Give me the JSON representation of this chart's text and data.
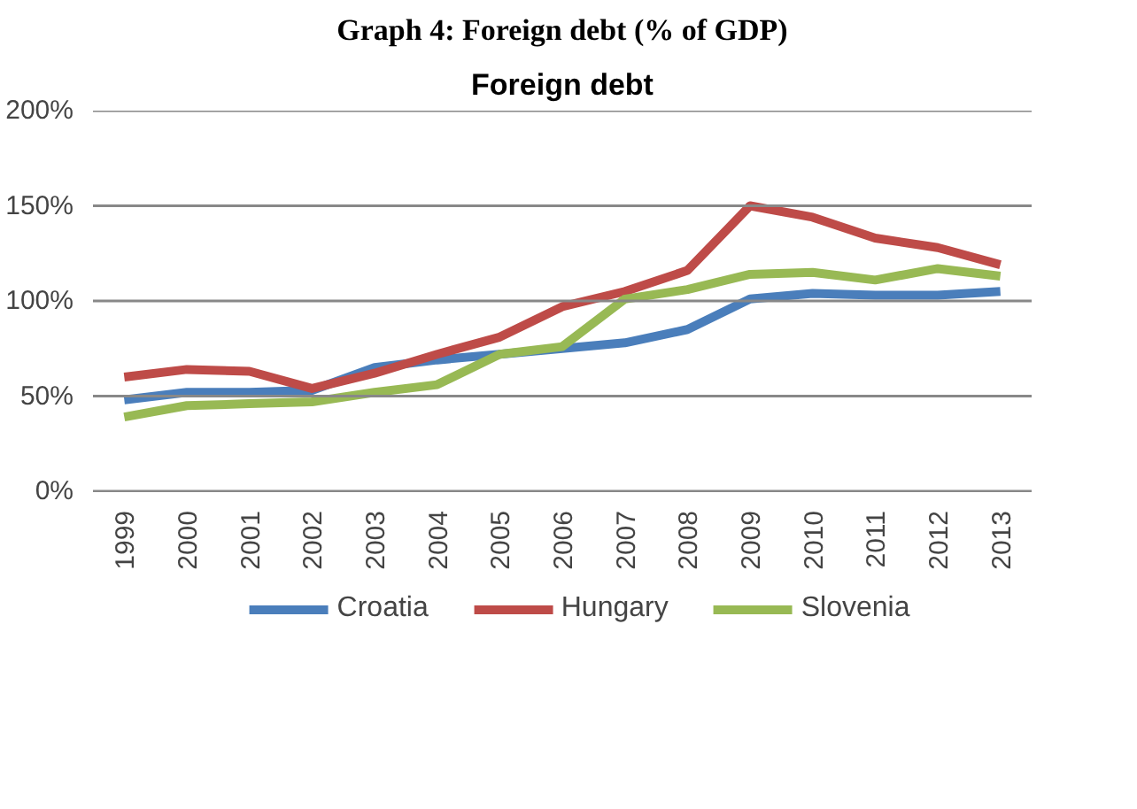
{
  "chart_data": {
    "type": "line",
    "title": "Foreign debt",
    "annotations": [
      "Graph 4: Foreign debt (% of GDP)"
    ],
    "categories": [
      "1999",
      "2000",
      "2001",
      "2002",
      "2003",
      "2004",
      "2005",
      "2006",
      "2007",
      "2008",
      "2009",
      "2010",
      "2011",
      "2012",
      "2013"
    ],
    "series": [
      {
        "name": "Croatia",
        "color": "#4a7ebb",
        "values": [
          48,
          52,
          52,
          53,
          65,
          69,
          72,
          75,
          78,
          85,
          101,
          104,
          103,
          103,
          105
        ]
      },
      {
        "name": "Hungary",
        "color": "#be4b48",
        "values": [
          60,
          64,
          63,
          54,
          62,
          72,
          81,
          97,
          105,
          116,
          150,
          144,
          133,
          128,
          119
        ]
      },
      {
        "name": "Slovenia",
        "color": "#98b954",
        "values": [
          39,
          45,
          46,
          47,
          52,
          56,
          72,
          76,
          101,
          106,
          114,
          115,
          111,
          117,
          113
        ]
      }
    ],
    "ylim": [
      0,
      200
    ],
    "yticks": [
      {
        "value": 0,
        "label": "0%"
      },
      {
        "value": 50,
        "label": "50%"
      },
      {
        "value": 100,
        "label": "100%"
      },
      {
        "value": 150,
        "label": "150%"
      },
      {
        "value": 200,
        "label": "200%"
      }
    ],
    "grid": "y",
    "legend": "bottom",
    "marker": "none",
    "line_style": "solid"
  }
}
